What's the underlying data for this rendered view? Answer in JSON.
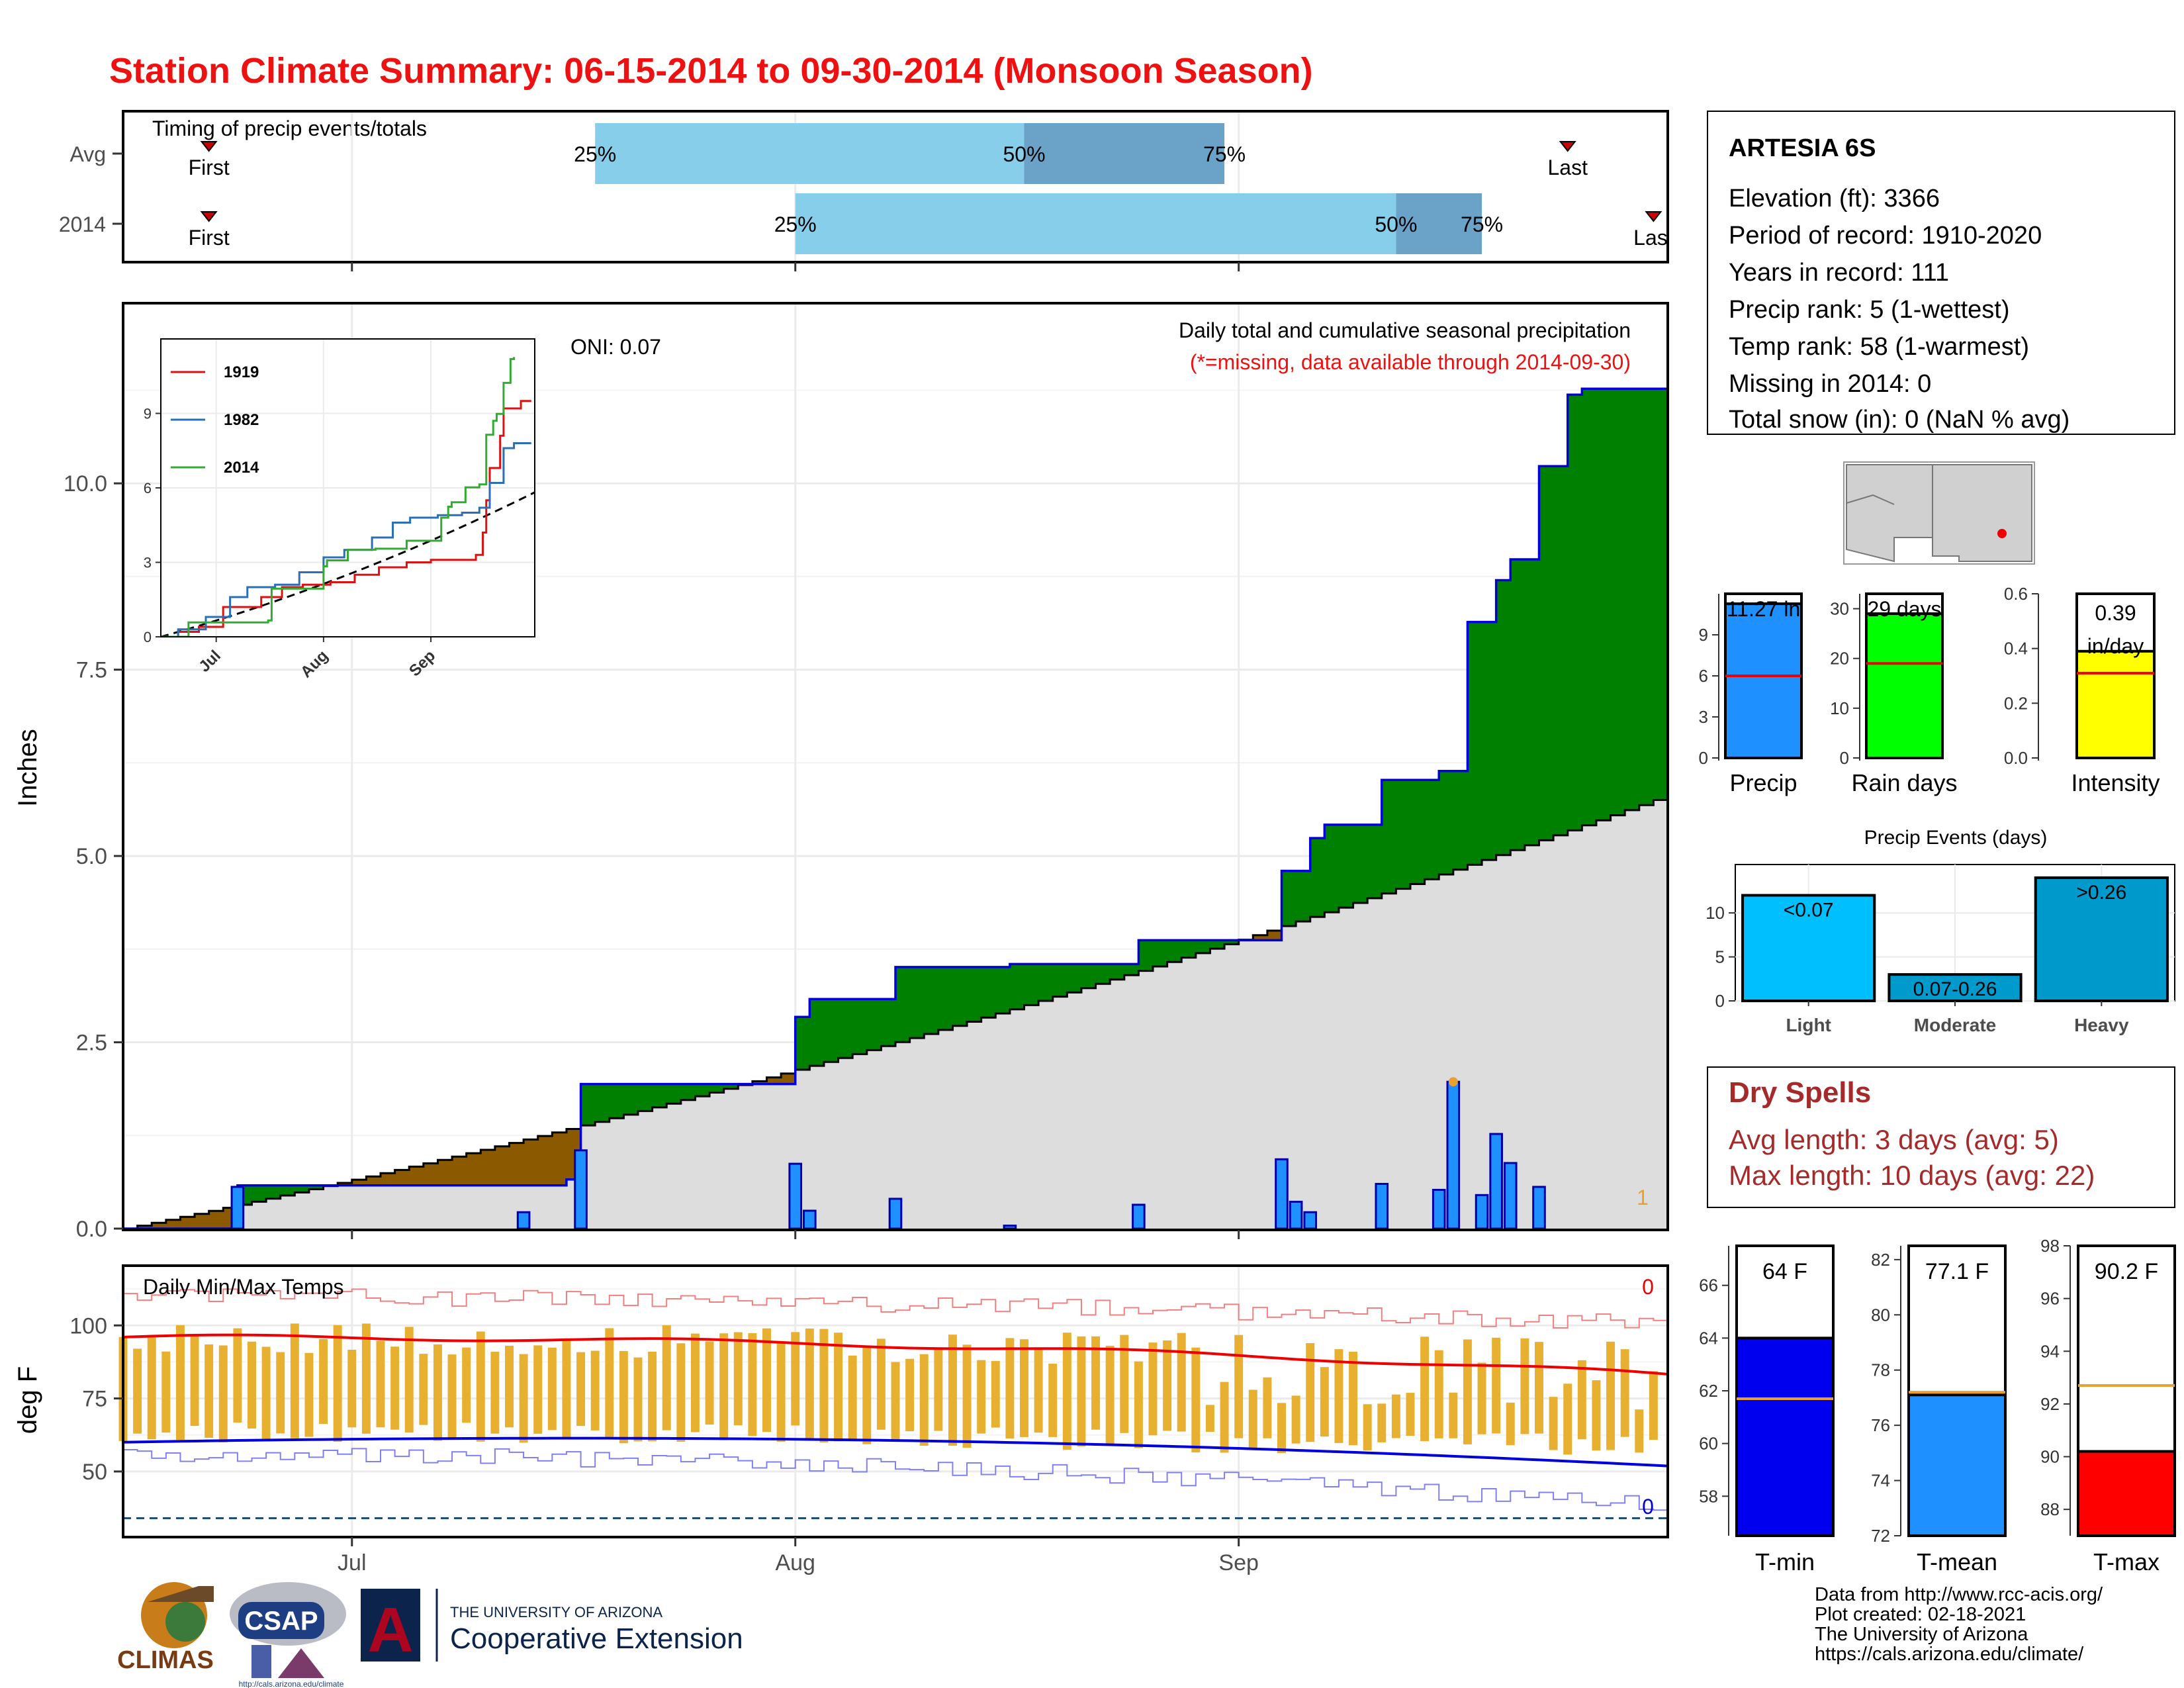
{
  "page": {
    "title": "Station Climate Summary: 06-15-2014 to 09-30-2014 (Monsoon Season)",
    "footer_lines": [
      "Data from http://www.rcc-acis.org/",
      "Plot created: 02-18-2021",
      "The University of Arizona",
      "https://cals.arizona.edu/climate/"
    ]
  },
  "colors": {
    "title_red": "#ee1111",
    "above_avg_green": "#008000",
    "below_avg_brown": "#8b5a00",
    "cumulative_gray": "#dddddd",
    "daily_bar_blue": "#1e90ff",
    "tmax_avg_red": "#ee0000",
    "tmin_avg_blue": "#0000dd",
    "range_bar_orange": "#e8b030",
    "light_blue": "#87ceeb",
    "mid_blue": "#6aa2c8",
    "dry_spell_red": "#a52a2a"
  },
  "station_info": {
    "name": "ARTESIA 6S",
    "lines": [
      "Elevation (ft): 3366",
      "Period of record: 1910-2020",
      "Years in record: 111",
      "Precip rank: 5 (1-wettest)",
      "Temp rank: 58 (1-warmest)",
      "Missing in 2014: 0",
      "Total snow (in): 0 (NaN % avg)"
    ]
  },
  "dry_spells": {
    "title": "Dry Spells",
    "avg_line": "Avg length: 3 days (avg: 5)",
    "max_line": "Max length: 10 days (avg: 22)"
  },
  "logos": {
    "climas": "CLIMAS",
    "csap": "CSAP",
    "csap_url": "http://cals.arizona.edu/climate",
    "ua_small": "THE UNIVERSITY OF ARIZONA",
    "ua_ext": "Cooperative Extension",
    "ua_letter": "A"
  },
  "chart_data": [
    {
      "id": "timing",
      "type": "bar",
      "title": "Timing of precip events/totals",
      "x_ticks": [
        "Jul",
        "Aug",
        "Sep"
      ],
      "rows": [
        {
          "label": "Avg",
          "first": "06-21",
          "last": "09-24",
          "p25": "07-18",
          "p50": "08-17",
          "p75": "08-31",
          "p25_label": "25%",
          "p50_label": "50%",
          "p75_label": "75%",
          "first_label": "First",
          "last_label": "Last"
        },
        {
          "label": "2014",
          "first": "06-21",
          "last": "09-30",
          "p25": "08-01",
          "p50": "09-12",
          "p75": "09-18",
          "p25_label": "25%",
          "p50_label": "50%",
          "p75_label": "75%",
          "first_label": "First",
          "last_label": "Last"
        }
      ]
    },
    {
      "id": "precip_main",
      "type": "area",
      "title": "Daily total and cumulative seasonal precipitation",
      "subtitle": "(*=missing, data available through 2014-09-30)",
      "annotation": "ONI: 0.07",
      "corner_value": "1",
      "ylabel": "Inches",
      "ylim": [
        0,
        12.4
      ],
      "y_ticks": [
        0,
        2.5,
        5,
        7.5,
        10
      ],
      "y_tick_labels": [
        "0.0",
        "2.5",
        "5.0",
        "7.5",
        "10.0"
      ],
      "x_ticks": [
        "Jul",
        "Aug",
        "Sep"
      ],
      "avg_cumulative_end": 5.82,
      "observed_cumulative_steps": [
        {
          "date": "06-15",
          "value": 0.0
        },
        {
          "date": "06-23",
          "value": 0.58
        },
        {
          "date": "07-16",
          "value": 0.66
        },
        {
          "date": "07-17",
          "value": 1.94
        },
        {
          "date": "08-01",
          "value": 2.84
        },
        {
          "date": "08-02",
          "value": 3.08
        },
        {
          "date": "08-08",
          "value": 3.51
        },
        {
          "date": "08-16",
          "value": 3.55
        },
        {
          "date": "08-25",
          "value": 3.87
        },
        {
          "date": "09-04",
          "value": 4.8
        },
        {
          "date": "09-06",
          "value": 5.24
        },
        {
          "date": "09-07",
          "value": 5.42
        },
        {
          "date": "09-11",
          "value": 6.02
        },
        {
          "date": "09-15",
          "value": 6.14
        },
        {
          "date": "09-17",
          "value": 8.14
        },
        {
          "date": "09-19",
          "value": 8.7
        },
        {
          "date": "09-20",
          "value": 8.98
        },
        {
          "date": "09-22",
          "value": 10.23
        },
        {
          "date": "09-24",
          "value": 11.19
        },
        {
          "date": "09-25",
          "value": 11.27
        }
      ],
      "daily_precip": [
        {
          "date": "06-23",
          "value": 0.56
        },
        {
          "date": "07-13",
          "value": 0.22
        },
        {
          "date": "07-17",
          "value": 1.05
        },
        {
          "date": "08-01",
          "value": 0.87
        },
        {
          "date": "08-02",
          "value": 0.24
        },
        {
          "date": "08-08",
          "value": 0.4
        },
        {
          "date": "08-16",
          "value": 0.04
        },
        {
          "date": "08-25",
          "value": 0.32
        },
        {
          "date": "09-04",
          "value": 0.93
        },
        {
          "date": "09-05",
          "value": 0.36
        },
        {
          "date": "09-06",
          "value": 0.22
        },
        {
          "date": "09-11",
          "value": 0.6
        },
        {
          "date": "09-15",
          "value": 0.52
        },
        {
          "date": "09-16",
          "value": 1.97
        },
        {
          "date": "09-18",
          "value": 0.45
        },
        {
          "date": "09-19",
          "value": 1.27
        },
        {
          "date": "09-20",
          "value": 0.88
        },
        {
          "date": "09-22",
          "value": 0.56
        }
      ],
      "max_day_marker": {
        "date": "09-16",
        "value": 1.97
      }
    },
    {
      "id": "inset_years",
      "type": "line",
      "x_ticks": [
        "Jul",
        "Aug",
        "Sep"
      ],
      "y_ticks": [
        0,
        3,
        6,
        9
      ],
      "series": [
        {
          "name": "1919",
          "color": "#dd1111",
          "points": [
            [
              "06-15",
              0
            ],
            [
              "06-20",
              0.2
            ],
            [
              "06-26",
              0.4
            ],
            [
              "07-03",
              1.2
            ],
            [
              "07-08",
              1.2
            ],
            [
              "07-14",
              1.6
            ],
            [
              "07-20",
              2.0
            ],
            [
              "07-26",
              2.1
            ],
            [
              "08-03",
              2.2
            ],
            [
              "08-10",
              2.5
            ],
            [
              "08-17",
              2.8
            ],
            [
              "08-25",
              3.0
            ],
            [
              "09-01",
              3.1
            ],
            [
              "09-14",
              3.3
            ],
            [
              "09-16",
              4.2
            ],
            [
              "09-17",
              5.5
            ],
            [
              "09-18",
              6.8
            ],
            [
              "09-21",
              8.1
            ],
            [
              "09-22",
              9.2
            ],
            [
              "09-27",
              9.5
            ],
            [
              "09-30",
              9.5
            ]
          ]
        },
        {
          "name": "1982",
          "color": "#2b6fb6",
          "points": [
            [
              "06-15",
              0
            ],
            [
              "06-20",
              0.3
            ],
            [
              "06-28",
              0.8
            ],
            [
              "07-05",
              1.6
            ],
            [
              "07-10",
              2.0
            ],
            [
              "07-18",
              2.1
            ],
            [
              "07-25",
              2.6
            ],
            [
              "08-01",
              3.2
            ],
            [
              "08-07",
              3.5
            ],
            [
              "08-15",
              4.0
            ],
            [
              "08-21",
              4.6
            ],
            [
              "08-26",
              4.8
            ],
            [
              "09-03",
              4.9
            ],
            [
              "09-10",
              5.0
            ],
            [
              "09-15",
              5.2
            ],
            [
              "09-18",
              6.2
            ],
            [
              "09-22",
              7.6
            ],
            [
              "09-25",
              7.8
            ],
            [
              "09-30",
              7.8
            ]
          ]
        },
        {
          "name": "2014",
          "color": "#33aa33",
          "points": [
            [
              "06-15",
              0
            ],
            [
              "06-23",
              0.58
            ],
            [
              "07-16",
              0.66
            ],
            [
              "07-17",
              1.94
            ],
            [
              "08-01",
              2.84
            ],
            [
              "08-02",
              3.08
            ],
            [
              "08-08",
              3.51
            ],
            [
              "08-16",
              3.55
            ],
            [
              "08-25",
              3.87
            ],
            [
              "09-04",
              4.8
            ],
            [
              "09-06",
              5.24
            ],
            [
              "09-07",
              5.42
            ],
            [
              "09-11",
              6.02
            ],
            [
              "09-15",
              6.14
            ],
            [
              "09-17",
              8.14
            ],
            [
              "09-19",
              8.7
            ],
            [
              "09-20",
              8.98
            ],
            [
              "09-22",
              10.23
            ],
            [
              "09-24",
              11.19
            ],
            [
              "09-25",
              11.27
            ]
          ]
        }
      ],
      "avg_line": {
        "end": 5.82
      }
    },
    {
      "id": "temps",
      "type": "bar",
      "title": "Daily Min/Max Temps",
      "ylabel": "deg F",
      "ylim": [
        28,
        120
      ],
      "y_ticks": [
        50,
        75,
        100
      ],
      "x_ticks": [
        "Jul",
        "Aug",
        "Sep"
      ],
      "tmax_record_count": "0",
      "tmin_record_count": "0",
      "avg_tmax_start": 96,
      "avg_tmax_end": 83,
      "avg_tmin_start": 60,
      "avg_tmin_end": 50,
      "record_low_reference": 34
    },
    {
      "id": "precip_bars",
      "type": "bar",
      "categories": [
        "Precip",
        "Rain days",
        "Intensity"
      ],
      "panels": [
        {
          "name": "Precip",
          "value": 11.27,
          "avg": 6.0,
          "ylim": [
            0,
            12.0
          ],
          "ticks": [
            0,
            3,
            6,
            9
          ],
          "label": "11.27 in",
          "color": "#1e90ff"
        },
        {
          "name": "Rain days",
          "value": 29,
          "avg": 19,
          "ylim": [
            0,
            33
          ],
          "ticks": [
            0,
            10,
            20,
            30
          ],
          "label": "29 days",
          "color": "#00ff00"
        },
        {
          "name": "Intensity",
          "value": 0.39,
          "avg": 0.31,
          "ylim": [
            0,
            0.6
          ],
          "ticks": [
            "0.0",
            "0.2",
            "0.4",
            "0.6"
          ],
          "label_lines": [
            "0.39",
            "in/day"
          ],
          "color": "#ffff00"
        }
      ]
    },
    {
      "id": "precip_events",
      "type": "bar",
      "title": "Precip Events (days)",
      "categories": [
        "Light",
        "Moderate",
        "Heavy"
      ],
      "values": [
        12,
        3,
        14
      ],
      "value_labels": [
        "<0.07",
        "0.07-0.26",
        ">0.26"
      ],
      "colors": [
        "#00bfff",
        "#009acd",
        "#0099cc"
      ],
      "ylim": [
        0,
        15.5
      ],
      "y_ticks": [
        0,
        5,
        10
      ]
    },
    {
      "id": "temp_bars",
      "type": "bar",
      "categories": [
        "T-min",
        "T-mean",
        "T-max"
      ],
      "panels": [
        {
          "name": "T-min",
          "value": 64,
          "avg": 61.7,
          "ylim": [
            56.5,
            67.5
          ],
          "ticks": [
            58,
            60,
            62,
            64,
            66
          ],
          "label": "64 F",
          "color": "#0000ee"
        },
        {
          "name": "T-mean",
          "value": 77.1,
          "avg": 77.2,
          "ylim": [
            72,
            82.5
          ],
          "ticks": [
            72,
            74,
            76,
            78,
            80,
            82
          ],
          "label": "77.1 F",
          "color": "#1e90ff"
        },
        {
          "name": "T-max",
          "value": 90.2,
          "avg": 92.7,
          "ylim": [
            87,
            98
          ],
          "ticks": [
            88,
            90,
            92,
            94,
            96,
            98
          ],
          "label": "90.2 F",
          "color": "#ff0000"
        }
      ]
    }
  ]
}
